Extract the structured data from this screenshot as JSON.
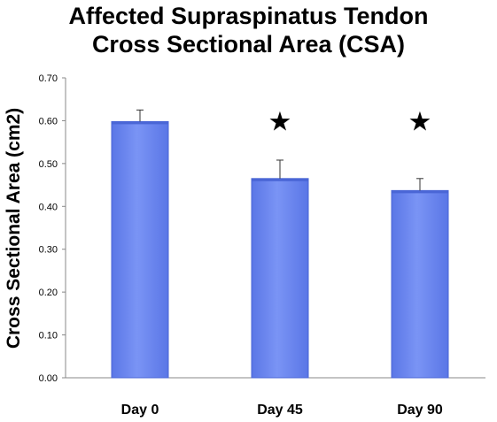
{
  "chart_data": {
    "type": "bar",
    "title_lines": [
      "Affected Supraspinatus Tendon",
      "Cross Sectional Area (CSA)"
    ],
    "xlabel": "",
    "ylabel": "Cross Sectional Area (cm2)",
    "categories": [
      "Day 0",
      "Day 45",
      "Day 90"
    ],
    "values": [
      0.598,
      0.465,
      0.437
    ],
    "error_upper": [
      0.625,
      0.508,
      0.465
    ],
    "significance": [
      "",
      "★",
      "★"
    ],
    "ylim": [
      0,
      0.7
    ],
    "yticks": [
      "0.00",
      "0.10",
      "0.20",
      "0.30",
      "0.40",
      "0.50",
      "0.60",
      "0.70"
    ],
    "grid": false,
    "legend": "none",
    "bar_color": "#6b86ef",
    "bar_edge_color": "#4a66d6"
  }
}
